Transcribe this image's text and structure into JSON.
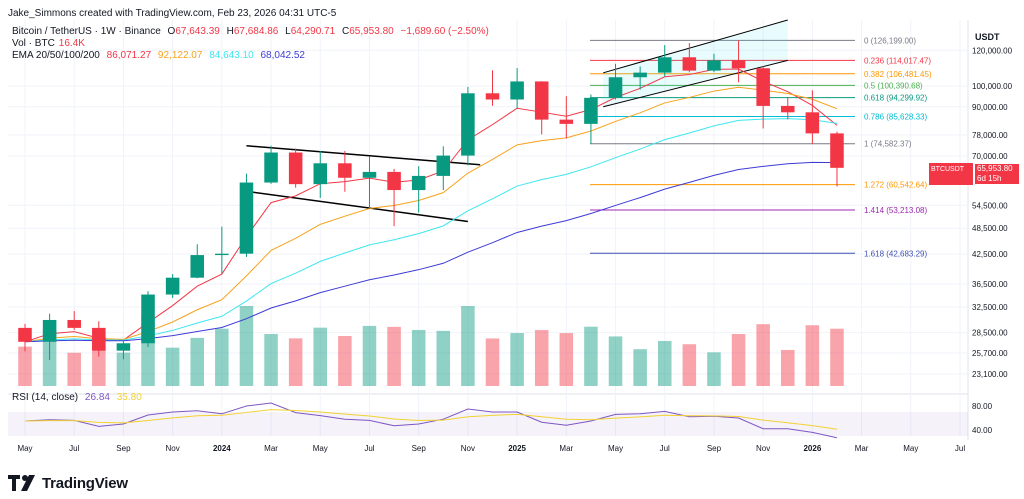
{
  "header": {
    "author_line": "Jake_Simmons created with TradingView.com, Feb 23, 2026 04:31 UTC-5",
    "symbol": "Bitcoin / TetherUS · 1W · Binance",
    "ohlc": {
      "o_label": "O",
      "o": "67,643.39",
      "h_label": "H",
      "h": "67,684.86",
      "l_label": "L",
      "l": "64,290.71",
      "c_label": "C",
      "c": "65,953.80",
      "change": "−1,689.60 (−2.50%)"
    },
    "vol_label": "Vol · BTC",
    "vol_value": "16.4K",
    "ema_label": "EMA 20/50/100/200",
    "ema_values": [
      "86,071.27",
      "92,122.07",
      "84,643.10",
      "68,042.52"
    ],
    "currency": "USDT"
  },
  "price_tag": {
    "symbol": "BTCUSDT",
    "price": "65,953.80",
    "countdown": "6d 15h"
  },
  "rsi_header": {
    "label": "RSI (14, close)",
    "value1": "26.84",
    "value2": "35.80"
  },
  "brand": "TradingView",
  "colors": {
    "up": "#089981",
    "down": "#f23645",
    "ema20": "#f23645",
    "ema50": "#f7a21b",
    "ema100": "#3ee6f0",
    "ema200": "#3f3bd6",
    "rsi": "#7e57c2",
    "rsi_ma": "#f2d230"
  },
  "chart_data": {
    "type": "candlestick",
    "timeframe": "1W",
    "y_scale": "log",
    "y_ticks": [
      {
        "value": 120000,
        "label": "120,000.00"
      },
      {
        "value": 100000,
        "label": "100,000.00"
      },
      {
        "value": 90000,
        "label": "90,000.00"
      },
      {
        "value": 78000,
        "label": "78,000.00"
      },
      {
        "value": 70000,
        "label": "70,000.00"
      },
      {
        "value": 54500,
        "label": "54,500.00"
      },
      {
        "value": 48500,
        "label": "48,500.00"
      },
      {
        "value": 42500,
        "label": "42,500.00"
      },
      {
        "value": 36500,
        "label": "36,500.00"
      },
      {
        "value": 32500,
        "label": "32,500.00"
      },
      {
        "value": 28500,
        "label": "28,500.00"
      },
      {
        "value": 25700,
        "label": "25,700.00"
      },
      {
        "value": 23100,
        "label": "23,100.00"
      }
    ],
    "x_ticks": [
      "May",
      "Jul",
      "Sep",
      "Nov",
      "2024",
      "Mar",
      "May",
      "Jul",
      "Sep",
      "Nov",
      "2025",
      "Mar",
      "May",
      "Jul",
      "Sep",
      "Nov",
      "2026",
      "Mar",
      "May",
      "Jul"
    ],
    "candles_monthly_approx": [
      {
        "t": "2023-05",
        "o": 29200,
        "h": 29800,
        "l": 25900,
        "c": 27200
      },
      {
        "t": "2023-06",
        "o": 27200,
        "h": 31400,
        "l": 24800,
        "c": 30400
      },
      {
        "t": "2023-07",
        "o": 30400,
        "h": 31800,
        "l": 28900,
        "c": 29200
      },
      {
        "t": "2023-08",
        "o": 29200,
        "h": 30200,
        "l": 25200,
        "c": 26000
      },
      {
        "t": "2023-09",
        "o": 26000,
        "h": 27400,
        "l": 24900,
        "c": 27000
      },
      {
        "t": "2023-10",
        "o": 27000,
        "h": 35200,
        "l": 26500,
        "c": 34600
      },
      {
        "t": "2023-11",
        "o": 34600,
        "h": 38400,
        "l": 34000,
        "c": 37700
      },
      {
        "t": "2023-12",
        "o": 37700,
        "h": 44700,
        "l": 37600,
        "c": 42300
      },
      {
        "t": "2024-01",
        "o": 42300,
        "h": 48900,
        "l": 38500,
        "c": 42600
      },
      {
        "t": "2024-02",
        "o": 42600,
        "h": 64000,
        "l": 41900,
        "c": 61200
      },
      {
        "t": "2024-03",
        "o": 61200,
        "h": 73800,
        "l": 60800,
        "c": 71300
      },
      {
        "t": "2024-04",
        "o": 71300,
        "h": 72800,
        "l": 59600,
        "c": 60700
      },
      {
        "t": "2024-05",
        "o": 60700,
        "h": 71900,
        "l": 56600,
        "c": 67500
      },
      {
        "t": "2024-06",
        "o": 67500,
        "h": 71900,
        "l": 58400,
        "c": 62700
      },
      {
        "t": "2024-07",
        "o": 62700,
        "h": 70000,
        "l": 53500,
        "c": 64600
      },
      {
        "t": "2024-08",
        "o": 64600,
        "h": 65600,
        "l": 49000,
        "c": 58900
      },
      {
        "t": "2024-09",
        "o": 58900,
        "h": 66500,
        "l": 52500,
        "c": 63300
      },
      {
        "t": "2024-10",
        "o": 63300,
        "h": 73600,
        "l": 58900,
        "c": 70200
      },
      {
        "t": "2024-11",
        "o": 70200,
        "h": 99600,
        "l": 66800,
        "c": 96400
      },
      {
        "t": "2024-12",
        "o": 96400,
        "h": 108300,
        "l": 90500,
        "c": 93400
      },
      {
        "t": "2025-01",
        "o": 93400,
        "h": 109600,
        "l": 89200,
        "c": 102400
      },
      {
        "t": "2025-02",
        "o": 102400,
        "h": 102500,
        "l": 78200,
        "c": 84300
      },
      {
        "t": "2025-03",
        "o": 84300,
        "h": 95000,
        "l": 76600,
        "c": 82500
      },
      {
        "t": "2025-04",
        "o": 82500,
        "h": 95800,
        "l": 74500,
        "c": 94200
      },
      {
        "t": "2025-05",
        "o": 94200,
        "h": 112000,
        "l": 93400,
        "c": 104600
      },
      {
        "t": "2025-06",
        "o": 104600,
        "h": 110500,
        "l": 98200,
        "c": 107100
      },
      {
        "t": "2025-07",
        "o": 107100,
        "h": 123200,
        "l": 105100,
        "c": 115800
      },
      {
        "t": "2025-08",
        "o": 115800,
        "h": 124500,
        "l": 107300,
        "c": 108200
      },
      {
        "t": "2025-09",
        "o": 108200,
        "h": 117900,
        "l": 107300,
        "c": 114000
      },
      {
        "t": "2025-10",
        "o": 114000,
        "h": 126200,
        "l": 102000,
        "c": 109500
      },
      {
        "t": "2025-11",
        "o": 109500,
        "h": 110600,
        "l": 80600,
        "c": 90400
      },
      {
        "t": "2025-12",
        "o": 90400,
        "h": 94600,
        "l": 84400,
        "c": 87500
      },
      {
        "t": "2026-01",
        "o": 87500,
        "h": 97900,
        "l": 74500,
        "c": 78600
      },
      {
        "t": "2026-02",
        "o": 78600,
        "h": 79300,
        "l": 60000,
        "c": 65953.8
      }
    ],
    "fib_levels": [
      {
        "ratio": "0",
        "price": 126199.0,
        "label": "0 (126,199.00)",
        "color": "#787b86"
      },
      {
        "ratio": "0.236",
        "price": 114017.47,
        "label": "0.236 (114,017.47)",
        "color": "#f23645"
      },
      {
        "ratio": "0.382",
        "price": 106481.45,
        "label": "0.382 (106,481.45)",
        "color": "#ff9800"
      },
      {
        "ratio": "0.5",
        "price": 100390.68,
        "label": "0.5 (100,390.68)",
        "color": "#4caf50"
      },
      {
        "ratio": "0.618",
        "price": 94299.92,
        "label": "0.618 (94,299.92)",
        "color": "#089981"
      },
      {
        "ratio": "0.786",
        "price": 85628.33,
        "label": "0.786 (85,628.33)",
        "color": "#00bcd4"
      },
      {
        "ratio": "1",
        "price": 74582.37,
        "label": "1 (74,582.37)",
        "color": "#787b86"
      },
      {
        "ratio": "1.272",
        "price": 60542.64,
        "label": "1.272 (60,542.64)",
        "color": "#ff9800"
      },
      {
        "ratio": "1.414",
        "price": 53213.08,
        "label": "1.414 (53,213.08)",
        "color": "#9c27b0"
      },
      {
        "ratio": "1.618",
        "price": 42683.29,
        "label": "1.618 (42,683.29)",
        "color": "#3f51b5"
      }
    ],
    "rsi_ticks": [
      {
        "value": 80,
        "label": "80.00"
      },
      {
        "value": 40,
        "label": "40.00"
      }
    ],
    "rsi_values_monthly_approx": [
      55,
      57,
      56,
      46,
      50,
      65,
      70,
      72,
      67,
      80,
      85,
      69,
      64,
      58,
      56,
      47,
      50,
      58,
      75,
      70,
      70,
      53,
      48,
      55,
      66,
      67,
      71,
      62,
      63,
      60,
      42,
      42,
      36,
      27
    ]
  }
}
